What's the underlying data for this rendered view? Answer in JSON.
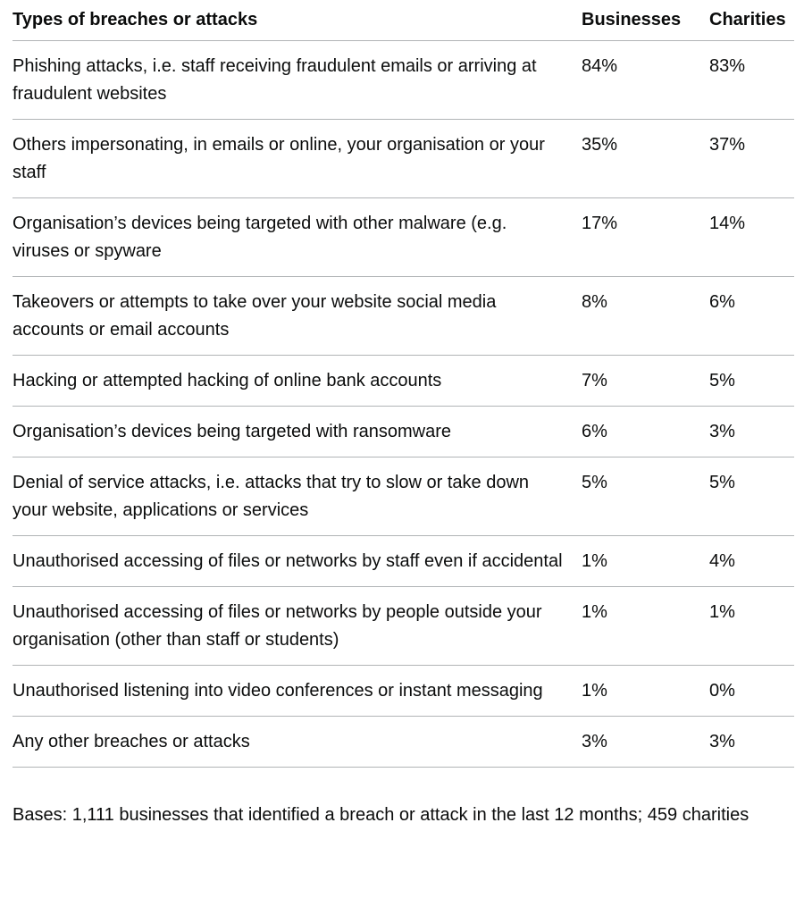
{
  "table": {
    "headers": {
      "type": "Types of breaches or attacks",
      "businesses": "Businesses",
      "charities": "Charities"
    },
    "rows": [
      {
        "label": "Phishing attacks, i.e. staff receiving fraudulent emails or arriving at fraudulent websites",
        "businesses": "84%",
        "charities": "83%"
      },
      {
        "label": "Others impersonating, in emails or online, your organisation or your staff",
        "businesses": "35%",
        "charities": "37%"
      },
      {
        "label": "Organisation’s devices being targeted with other malware (e.g. viruses or spyware",
        "businesses": "17%",
        "charities": "14%"
      },
      {
        "label": "Takeovers or attempts to take over your website social media accounts or email accounts",
        "businesses": "8%",
        "charities": "6%"
      },
      {
        "label": "Hacking or attempted hacking of online bank accounts",
        "businesses": "7%",
        "charities": "5%"
      },
      {
        "label": "Organisation’s devices being targeted with ransomware",
        "businesses": "6%",
        "charities": "3%"
      },
      {
        "label": "Denial of service attacks, i.e. attacks that try to slow or take down your website, applications or services",
        "businesses": "5%",
        "charities": "5%"
      },
      {
        "label": "Unauthorised accessing of files or networks by staff even if accidental",
        "businesses": "1%",
        "charities": "4%"
      },
      {
        "label": "Unauthorised accessing of files or networks by people outside your organisation (other than staff or students)",
        "businesses": "1%",
        "charities": "1%"
      },
      {
        "label": "Unauthorised listening into video conferences or instant messaging",
        "businesses": "1%",
        "charities": "0%"
      },
      {
        "label": "Any other breaches or attacks",
        "businesses": "3%",
        "charities": "3%"
      }
    ]
  },
  "footnote": "Bases: 1,111 businesses that identified a breach or attack in the last 12 months; 459 charities"
}
